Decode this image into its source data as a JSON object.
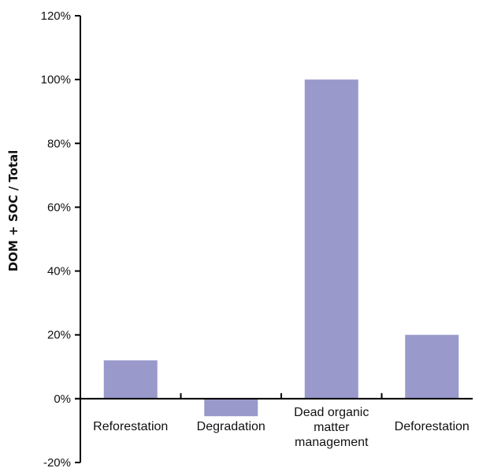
{
  "chart_data": {
    "type": "bar",
    "title": "",
    "xlabel": "",
    "ylabel": "DOM + SOC / Total",
    "categories": [
      [
        "Reforestation"
      ],
      [
        "Degradation"
      ],
      [
        "Dead organic",
        "matter",
        "management"
      ],
      [
        "Deforestation"
      ]
    ],
    "values": [
      12,
      -5.5,
      100,
      20
    ],
    "ylim": [
      -20,
      120
    ],
    "yticks": [
      -20,
      0,
      20,
      40,
      60,
      80,
      100,
      120
    ],
    "ytick_format": "percent",
    "grid": false,
    "legend": "none",
    "colors": {
      "bar": "#9999cc",
      "axis": "#000000",
      "text": "#111111"
    }
  }
}
